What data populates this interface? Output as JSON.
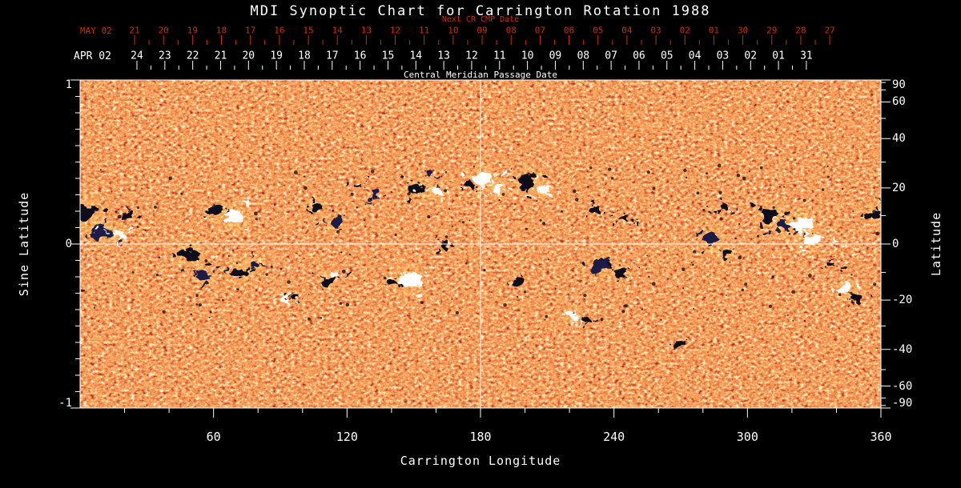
{
  "title": "MDI Synoptic Chart for Carrington Rotation 1988",
  "colors": {
    "background": "#000000",
    "foreground": "#ffffff",
    "red_axis": "#cc2e00",
    "field_base": "#e0521e",
    "negative_polarity": "#07071c",
    "negative_polarity_alt": "#1c1c46",
    "positive_polarity": "#ffffff",
    "plage_halo": "#ffd878"
  },
  "axes": {
    "top_red": {
      "title": "Next CR CMP Date",
      "month_label": "MAY 02",
      "day_ticks": [
        "21",
        "20",
        "19",
        "18",
        "17",
        "16",
        "15",
        "14",
        "13",
        "12",
        "11",
        "10",
        "09",
        "08",
        "07",
        "06",
        "05",
        "04",
        "03",
        "02",
        "01",
        "30",
        "29",
        "28",
        "27"
      ]
    },
    "top_white": {
      "title": "Central Meridian Passage Date",
      "month_label": "APR 02",
      "day_ticks": [
        "24",
        "23",
        "22",
        "21",
        "20",
        "19",
        "18",
        "17",
        "16",
        "15",
        "14",
        "13",
        "12",
        "11",
        "10",
        "09",
        "08",
        "07",
        "06",
        "05",
        "04",
        "03",
        "02",
        "01",
        "31"
      ]
    },
    "left": {
      "title": "Sine Latitude",
      "ticks": [
        {
          "label": "1",
          "value": 1
        },
        {
          "label": "0",
          "value": 0
        },
        {
          "label": "-1",
          "value": -1
        }
      ]
    },
    "right": {
      "title": "Latitude",
      "ticks": [
        {
          "label": "90",
          "value": 90
        },
        {
          "label": "60",
          "value": 60
        },
        {
          "label": "40",
          "value": 40
        },
        {
          "label": "20",
          "value": 20
        },
        {
          "label": "0",
          "value": 0
        },
        {
          "label": "-20",
          "value": -20
        },
        {
          "label": "-40",
          "value": -40
        },
        {
          "label": "-60",
          "value": -60
        },
        {
          "label": "-90",
          "value": -90
        }
      ]
    },
    "bottom": {
      "title": "Carrington Longitude",
      "ticks": [
        {
          "label": "60",
          "value": 60
        },
        {
          "label": "120",
          "value": 120
        },
        {
          "label": "180",
          "value": 180
        },
        {
          "label": "240",
          "value": 240
        },
        {
          "label": "300",
          "value": 300
        },
        {
          "label": "360",
          "value": 360
        }
      ]
    }
  },
  "chart_data": {
    "type": "heatmap",
    "title": "MDI Synoptic Chart for Carrington Rotation 1988",
    "xlabel": "Carrington Longitude",
    "ylabel_left": "Sine Latitude",
    "ylabel_right": "Latitude",
    "x_range": [
      0,
      360
    ],
    "y_range_sine_latitude": [
      -1,
      1
    ],
    "x_ticks": [
      60,
      120,
      180,
      240,
      300,
      360
    ],
    "left_ticks_sine_latitude": [
      1,
      0,
      -1
    ],
    "right_ticks_latitude_deg": [
      90,
      60,
      40,
      20,
      0,
      -20,
      -40,
      -60,
      -90
    ],
    "reference_lines": {
      "carrington_longitude": 180,
      "sine_latitude": 0
    },
    "field": "full-rotation magnetogram map: granular orange background with dark (negative polarity) and bright white (positive polarity) active regions concentrated in two latitude bands",
    "active_regions": [
      {
        "lon": 2,
        "sin_lat": 0.2,
        "size": 13,
        "polarity": "negative"
      },
      {
        "lon": 9,
        "sin_lat": 0.07,
        "size": 9,
        "polarity": "negative"
      },
      {
        "lon": 17,
        "sin_lat": 0.06,
        "size": 6,
        "polarity": "positive"
      },
      {
        "lon": 22,
        "sin_lat": 0.17,
        "size": 5,
        "polarity": "negative"
      },
      {
        "lon": 49,
        "sin_lat": -0.06,
        "size": 10,
        "polarity": "negative"
      },
      {
        "lon": 56,
        "sin_lat": -0.2,
        "size": 7,
        "polarity": "negative"
      },
      {
        "lon": 61,
        "sin_lat": 0.2,
        "size": 6,
        "polarity": "negative"
      },
      {
        "lon": 69,
        "sin_lat": 0.16,
        "size": 10,
        "polarity": "positive"
      },
      {
        "lon": 72,
        "sin_lat": -0.17,
        "size": 9,
        "polarity": "negative"
      },
      {
        "lon": 79,
        "sin_lat": -0.12,
        "size": 6,
        "polarity": "negative"
      },
      {
        "lon": 92,
        "sin_lat": -0.32,
        "size": 6,
        "polarity": "positive"
      },
      {
        "lon": 98,
        "sin_lat": -0.33,
        "size": 4,
        "polarity": "negative"
      },
      {
        "lon": 106,
        "sin_lat": 0.23,
        "size": 7,
        "polarity": "negative"
      },
      {
        "lon": 115,
        "sin_lat": 0.13,
        "size": 6,
        "polarity": "negative"
      },
      {
        "lon": 111,
        "sin_lat": -0.22,
        "size": 6,
        "polarity": "negative"
      },
      {
        "lon": 114,
        "sin_lat": -0.18,
        "size": 5,
        "polarity": "positive"
      },
      {
        "lon": 125,
        "sin_lat": 0.36,
        "size": 4,
        "polarity": "negative"
      },
      {
        "lon": 133,
        "sin_lat": 0.3,
        "size": 4,
        "polarity": "negative"
      },
      {
        "lon": 141,
        "sin_lat": -0.24,
        "size": 5,
        "polarity": "negative"
      },
      {
        "lon": 148,
        "sin_lat": -0.22,
        "size": 10,
        "polarity": "positive"
      },
      {
        "lon": 152,
        "sin_lat": 0.34,
        "size": 8,
        "polarity": "negative"
      },
      {
        "lon": 158,
        "sin_lat": 0.43,
        "size": 4,
        "polarity": "negative"
      },
      {
        "lon": 161,
        "sin_lat": 0.32,
        "size": 7,
        "polarity": "positive"
      },
      {
        "lon": 164,
        "sin_lat": 0.0,
        "size": 5,
        "polarity": "negative"
      },
      {
        "lon": 175,
        "sin_lat": 0.36,
        "size": 4,
        "polarity": "negative"
      },
      {
        "lon": 181,
        "sin_lat": 0.4,
        "size": 9,
        "polarity": "positive"
      },
      {
        "lon": 188,
        "sin_lat": 0.33,
        "size": 6,
        "polarity": "positive"
      },
      {
        "lon": 197,
        "sin_lat": -0.23,
        "size": 5,
        "polarity": "negative"
      },
      {
        "lon": 201,
        "sin_lat": 0.38,
        "size": 9,
        "polarity": "negative"
      },
      {
        "lon": 209,
        "sin_lat": 0.33,
        "size": 6,
        "polarity": "positive"
      },
      {
        "lon": 221,
        "sin_lat": -0.44,
        "size": 6,
        "polarity": "positive"
      },
      {
        "lon": 228,
        "sin_lat": -0.46,
        "size": 5,
        "polarity": "negative"
      },
      {
        "lon": 232,
        "sin_lat": 0.2,
        "size": 5,
        "polarity": "negative"
      },
      {
        "lon": 235,
        "sin_lat": -0.13,
        "size": 8,
        "polarity": "negative"
      },
      {
        "lon": 243,
        "sin_lat": -0.17,
        "size": 6,
        "polarity": "negative"
      },
      {
        "lon": 245,
        "sin_lat": 0.15,
        "size": 4,
        "polarity": "negative"
      },
      {
        "lon": 270,
        "sin_lat": -0.6,
        "size": 5,
        "polarity": "negative"
      },
      {
        "lon": 284,
        "sin_lat": 0.03,
        "size": 9,
        "polarity": "negative"
      },
      {
        "lon": 289,
        "sin_lat": 0.21,
        "size": 5,
        "polarity": "negative"
      },
      {
        "lon": 290,
        "sin_lat": -0.06,
        "size": 6,
        "polarity": "negative"
      },
      {
        "lon": 310,
        "sin_lat": 0.18,
        "size": 9,
        "polarity": "negative"
      },
      {
        "lon": 316,
        "sin_lat": 0.1,
        "size": 7,
        "polarity": "negative"
      },
      {
        "lon": 324,
        "sin_lat": 0.12,
        "size": 10,
        "polarity": "positive"
      },
      {
        "lon": 328,
        "sin_lat": 0.02,
        "size": 8,
        "polarity": "positive"
      },
      {
        "lon": 338,
        "sin_lat": -0.12,
        "size": 4,
        "polarity": "negative"
      },
      {
        "lon": 344,
        "sin_lat": -0.28,
        "size": 7,
        "polarity": "positive"
      },
      {
        "lon": 349,
        "sin_lat": -0.33,
        "size": 5,
        "polarity": "negative"
      },
      {
        "lon": 357,
        "sin_lat": 0.18,
        "size": 7,
        "polarity": "negative"
      }
    ]
  }
}
